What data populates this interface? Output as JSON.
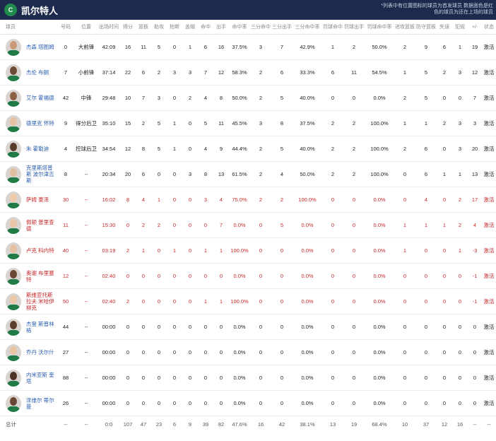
{
  "header": {
    "logo_text": "C",
    "team_name": "凯尔特人",
    "note": "*列表中有位置图标的球员为首发球员 数据面色是红色的球员为还在上场的球员"
  },
  "columns": [
    "球员",
    "号码",
    "位置",
    "出场时间",
    "得分",
    "篮板",
    "助攻",
    "抢断",
    "盖帽",
    "命中",
    "出手",
    "命中率",
    "三分命中",
    "三分出手",
    "三分命中率",
    "罚球命中",
    "罚球出手",
    "罚球命中率",
    "进攻篮板",
    "防守篮板",
    "失误",
    "犯规",
    "+/-",
    "状态"
  ],
  "players": [
    {
      "name": "杰森 塔图姆",
      "num": "0",
      "pos": "大前锋",
      "min": "42:09",
      "pts": "16",
      "reb": "11",
      "ast": "5",
      "stl": "0",
      "blk": "1",
      "fgm": "6",
      "fga": "16",
      "fgp": "37.5%",
      "tpm": "3",
      "tpa": "7",
      "tpp": "42.9%",
      "ftm": "1",
      "fta": "2",
      "ftp": "50.0%",
      "oreb": "2",
      "dreb": "9",
      "tov": "6",
      "pf": "1",
      "pm": "19",
      "status": "激活",
      "red": false,
      "skin": "#c99a78"
    },
    {
      "name": "杰伦 布朗",
      "num": "7",
      "pos": "小前锋",
      "min": "37:14",
      "pts": "22",
      "reb": "6",
      "ast": "2",
      "stl": "3",
      "blk": "3",
      "fgm": "7",
      "fga": "12",
      "fgp": "58.3%",
      "tpm": "2",
      "tpa": "6",
      "tpp": "33.3%",
      "ftm": "6",
      "fta": "11",
      "ftp": "54.5%",
      "oreb": "1",
      "dreb": "5",
      "tov": "2",
      "pf": "3",
      "pm": "12",
      "status": "激活",
      "red": false,
      "skin": "#6b4a36"
    },
    {
      "name": "艾尔 霍福德",
      "num": "42",
      "pos": "中锋",
      "min": "29:48",
      "pts": "10",
      "reb": "7",
      "ast": "3",
      "stl": "0",
      "blk": "2",
      "fgm": "4",
      "fga": "8",
      "fgp": "50.0%",
      "tpm": "2",
      "tpa": "5",
      "tpp": "40.0%",
      "ftm": "0",
      "fta": "0",
      "ftp": "0.0%",
      "oreb": "2",
      "dreb": "5",
      "tov": "0",
      "pf": "0",
      "pm": "7",
      "status": "激活",
      "red": false,
      "skin": "#8a6046"
    },
    {
      "name": "德里克 怀特",
      "num": "9",
      "pos": "得分后卫",
      "min": "35:10",
      "pts": "15",
      "reb": "2",
      "ast": "5",
      "stl": "1",
      "blk": "0",
      "fgm": "5",
      "fga": "11",
      "fgp": "45.5%",
      "tpm": "3",
      "tpa": "8",
      "tpp": "37.5%",
      "ftm": "2",
      "fta": "2",
      "ftp": "100.0%",
      "oreb": "1",
      "dreb": "1",
      "tov": "2",
      "pf": "3",
      "pm": "3",
      "status": "激活",
      "red": false,
      "skin": "#e8c2a4"
    },
    {
      "name": "朱 霍勒迪",
      "num": "4",
      "pos": "控球后卫",
      "min": "34:54",
      "pts": "12",
      "reb": "8",
      "ast": "5",
      "stl": "1",
      "blk": "0",
      "fgm": "4",
      "fga": "9",
      "fgp": "44.4%",
      "tpm": "2",
      "tpa": "5",
      "tpp": "40.0%",
      "ftm": "2",
      "fta": "2",
      "ftp": "100.0%",
      "oreb": "2",
      "dreb": "6",
      "tov": "0",
      "pf": "3",
      "pm": "20",
      "status": "激活",
      "red": false,
      "skin": "#5a3c2c"
    },
    {
      "name": "克里斯塔普斯 波尔津吉斯",
      "num": "8",
      "pos": "--",
      "min": "20:34",
      "pts": "20",
      "reb": "6",
      "ast": "0",
      "stl": "0",
      "blk": "3",
      "fgm": "8",
      "fga": "13",
      "fgp": "61.5%",
      "tpm": "2",
      "tpa": "4",
      "tpp": "50.0%",
      "ftm": "2",
      "fta": "2",
      "ftp": "100.0%",
      "oreb": "0",
      "dreb": "6",
      "tov": "1",
      "pf": "1",
      "pm": "13",
      "status": "激活",
      "red": false,
      "skin": "#e3bfa1"
    },
    {
      "name": "萨姆 豪泽",
      "num": "30",
      "pos": "--",
      "min": "16:02",
      "pts": "8",
      "reb": "4",
      "ast": "1",
      "stl": "0",
      "blk": "0",
      "fgm": "3",
      "fga": "4",
      "fgp": "75.0%",
      "tpm": "2",
      "tpa": "2",
      "tpp": "100.0%",
      "ftm": "0",
      "fta": "0",
      "ftp": "0.0%",
      "oreb": "0",
      "dreb": "4",
      "tov": "0",
      "pf": "2",
      "pm": "17",
      "status": "激活",
      "red": true,
      "skin": "#edc9aa"
    },
    {
      "name": "佩顿 普里查德",
      "num": "11",
      "pos": "--",
      "min": "15:30",
      "pts": "0",
      "reb": "2",
      "ast": "2",
      "stl": "0",
      "blk": "0",
      "fgm": "0",
      "fga": "7",
      "fgp": "0.0%",
      "tpm": "0",
      "tpa": "5",
      "tpp": "0.0%",
      "ftm": "0",
      "fta": "0",
      "ftp": "0.0%",
      "oreb": "1",
      "dreb": "1",
      "tov": "1",
      "pf": "2",
      "pm": "4",
      "status": "激活",
      "red": true,
      "skin": "#eac6a6"
    },
    {
      "name": "卢克 科内特",
      "num": "40",
      "pos": "--",
      "min": "03:19",
      "pts": "2",
      "reb": "1",
      "ast": "0",
      "stl": "1",
      "blk": "0",
      "fgm": "1",
      "fga": "1",
      "fgp": "100.0%",
      "tpm": "0",
      "tpa": "0",
      "tpp": "0.0%",
      "ftm": "0",
      "fta": "0",
      "ftp": "0.0%",
      "oreb": "1",
      "dreb": "0",
      "tov": "0",
      "pf": "1",
      "pm": "-3",
      "status": "激活",
      "red": true,
      "skin": "#e6c0a2"
    },
    {
      "name": "奥谢 布里塞特",
      "num": "12",
      "pos": "--",
      "min": "02:40",
      "pts": "0",
      "reb": "0",
      "ast": "0",
      "stl": "0",
      "blk": "0",
      "fgm": "0",
      "fga": "0",
      "fgp": "0.0%",
      "tpm": "0",
      "tpa": "0",
      "tpp": "0.0%",
      "ftm": "0",
      "fta": "0",
      "ftp": "0.0%",
      "oreb": "0",
      "dreb": "0",
      "tov": "0",
      "pf": "0",
      "pm": "-1",
      "status": "激活",
      "red": true,
      "skin": "#6a4733"
    },
    {
      "name": "斯维亚托斯拉夫 米哈伊柳克",
      "num": "50",
      "pos": "--",
      "min": "02:40",
      "pts": "2",
      "reb": "0",
      "ast": "0",
      "stl": "0",
      "blk": "0",
      "fgm": "1",
      "fga": "1",
      "fgp": "100.0%",
      "tpm": "0",
      "tpa": "0",
      "tpp": "0.0%",
      "ftm": "0",
      "fta": "0",
      "ftp": "0.0%",
      "oreb": "0",
      "dreb": "0",
      "tov": "0",
      "pf": "0",
      "pm": "-1",
      "status": "激活",
      "red": true,
      "skin": "#ecc8a8"
    },
    {
      "name": "杰登 斯普林格",
      "num": "44",
      "pos": "--",
      "min": "00:00",
      "pts": "0",
      "reb": "0",
      "ast": "0",
      "stl": "0",
      "blk": "0",
      "fgm": "0",
      "fga": "0",
      "fgp": "0.0%",
      "tpm": "0",
      "tpa": "0",
      "tpp": "0.0%",
      "ftm": "0",
      "fta": "0",
      "ftp": "0.0%",
      "oreb": "0",
      "dreb": "0",
      "tov": "0",
      "pf": "0",
      "pm": "0",
      "status": "激活",
      "red": false,
      "skin": "#5c3d2b"
    },
    {
      "name": "乔丹 沃尔什",
      "num": "27",
      "pos": "--",
      "min": "00:00",
      "pts": "0",
      "reb": "0",
      "ast": "0",
      "stl": "0",
      "blk": "0",
      "fgm": "0",
      "fga": "0",
      "fgp": "0.0%",
      "tpm": "0",
      "tpa": "0",
      "tpp": "0.0%",
      "ftm": "0",
      "fta": "0",
      "ftp": "0.0%",
      "oreb": "0",
      "dreb": "0",
      "tov": "0",
      "pf": "0",
      "pm": "0",
      "status": "激活",
      "red": false,
      "skin": "#e9c4a3"
    },
    {
      "name": "内米亚斯 奎塔",
      "num": "88",
      "pos": "--",
      "min": "00:00",
      "pts": "0",
      "reb": "0",
      "ast": "0",
      "stl": "0",
      "blk": "0",
      "fgm": "0",
      "fga": "0",
      "fgp": "0.0%",
      "tpm": "0",
      "tpa": "0",
      "tpp": "0.0%",
      "ftm": "0",
      "fta": "0",
      "ftp": "0.0%",
      "oreb": "0",
      "dreb": "0",
      "tov": "0",
      "pf": "0",
      "pm": "0",
      "status": "激活",
      "red": false,
      "skin": "#4e3426"
    },
    {
      "name": "泽维尔 蒂尔曼",
      "num": "26",
      "pos": "--",
      "min": "00:00",
      "pts": "0",
      "reb": "0",
      "ast": "0",
      "stl": "0",
      "blk": "0",
      "fgm": "0",
      "fga": "0",
      "fgp": "0.0%",
      "tpm": "0",
      "tpa": "0",
      "tpp": "0.0%",
      "ftm": "0",
      "fta": "0",
      "ftp": "0.0%",
      "oreb": "0",
      "dreb": "0",
      "tov": "0",
      "pf": "0",
      "pm": "0",
      "status": "激活",
      "red": false,
      "skin": "#6a4733"
    }
  ],
  "totals": {
    "label": "总计",
    "num": "--",
    "pos": "--",
    "min": "0:0",
    "pts": "107",
    "reb": "47",
    "ast": "23",
    "stl": "6",
    "blk": "9",
    "fgm": "39",
    "fga": "82",
    "fgp": "47.6%",
    "tpm": "16",
    "tpa": "42",
    "tpp": "38.1%",
    "ftm": "13",
    "fta": "19",
    "ftp": "68.4%",
    "oreb": "10",
    "dreb": "37",
    "tov": "12",
    "pf": "16",
    "pm": "--",
    "status": "--"
  }
}
